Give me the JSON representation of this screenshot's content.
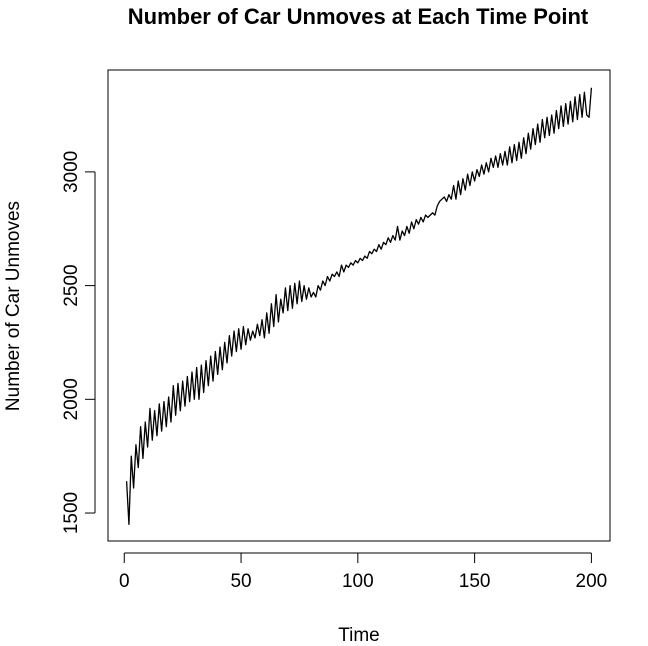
{
  "chart_data": {
    "type": "line",
    "title": "Number of Car Unmoves at Each Time Point",
    "x_label": "Time",
    "y_label": "Number of Car Unmoves",
    "x": [
      1,
      2,
      3,
      4,
      5,
      6,
      7,
      8,
      9,
      10,
      11,
      12,
      13,
      14,
      15,
      16,
      17,
      18,
      19,
      20,
      21,
      22,
      23,
      24,
      25,
      26,
      27,
      28,
      29,
      30,
      31,
      32,
      33,
      34,
      35,
      36,
      37,
      38,
      39,
      40,
      41,
      42,
      43,
      44,
      45,
      46,
      47,
      48,
      49,
      50,
      51,
      52,
      53,
      54,
      55,
      56,
      57,
      58,
      59,
      60,
      61,
      62,
      63,
      64,
      65,
      66,
      67,
      68,
      69,
      70,
      71,
      72,
      73,
      74,
      75,
      76,
      77,
      78,
      79,
      80,
      81,
      82,
      83,
      84,
      85,
      86,
      87,
      88,
      89,
      90,
      91,
      92,
      93,
      94,
      95,
      96,
      97,
      98,
      99,
      100,
      101,
      102,
      103,
      104,
      105,
      106,
      107,
      108,
      109,
      110,
      111,
      112,
      113,
      114,
      115,
      116,
      117,
      118,
      119,
      120,
      121,
      122,
      123,
      124,
      125,
      126,
      127,
      128,
      129,
      130,
      131,
      132,
      133,
      134,
      135,
      136,
      137,
      138,
      139,
      140,
      141,
      142,
      143,
      144,
      145,
      146,
      147,
      148,
      149,
      150,
      151,
      152,
      153,
      154,
      155,
      156,
      157,
      158,
      159,
      160,
      161,
      162,
      163,
      164,
      165,
      166,
      167,
      168,
      169,
      170,
      171,
      172,
      173,
      174,
      175,
      176,
      177,
      178,
      179,
      180,
      181,
      182,
      183,
      184,
      185,
      186,
      187,
      188,
      189,
      190,
      191,
      192,
      193,
      194,
      195,
      196,
      197,
      198,
      199,
      200
    ],
    "series": [
      {
        "color": "#000000",
        "values": [
          1640,
          1450,
          1750,
          1610,
          1800,
          1700,
          1880,
          1740,
          1900,
          1790,
          1960,
          1820,
          1950,
          1840,
          1980,
          1860,
          1990,
          1880,
          2010,
          1900,
          2060,
          1930,
          2070,
          1950,
          2080,
          1970,
          2100,
          1990,
          2120,
          2000,
          2140,
          2000,
          2150,
          2030,
          2170,
          2060,
          2190,
          2080,
          2210,
          2110,
          2230,
          2130,
          2250,
          2160,
          2280,
          2190,
          2300,
          2210,
          2310,
          2220,
          2320,
          2240,
          2310,
          2260,
          2300,
          2270,
          2330,
          2280,
          2350,
          2270,
          2380,
          2290,
          2420,
          2320,
          2460,
          2340,
          2440,
          2380,
          2490,
          2390,
          2500,
          2400,
          2510,
          2420,
          2520,
          2430,
          2500,
          2440,
          2490,
          2450,
          2470,
          2450,
          2500,
          2480,
          2520,
          2500,
          2540,
          2520,
          2550,
          2540,
          2560,
          2540,
          2590,
          2560,
          2590,
          2580,
          2600,
          2590,
          2610,
          2600,
          2620,
          2610,
          2630,
          2620,
          2650,
          2640,
          2660,
          2650,
          2680,
          2660,
          2690,
          2680,
          2710,
          2690,
          2720,
          2700,
          2760,
          2700,
          2740,
          2720,
          2760,
          2730,
          2780,
          2750,
          2790,
          2770,
          2800,
          2780,
          2810,
          2800,
          2810,
          2820,
          2810,
          2850,
          2870,
          2880,
          2890,
          2870,
          2900,
          2880,
          2940,
          2880,
          2960,
          2900,
          2970,
          2920,
          2990,
          2940,
          3000,
          2960,
          3010,
          2980,
          3030,
          2990,
          3040,
          3000,
          3060,
          3020,
          3070,
          3020,
          3080,
          3030,
          3090,
          3030,
          3110,
          3040,
          3120,
          3050,
          3130,
          3060,
          3150,
          3080,
          3170,
          3100,
          3190,
          3120,
          3210,
          3130,
          3230,
          3150,
          3240,
          3160,
          3250,
          3170,
          3270,
          3190,
          3290,
          3200,
          3300,
          3210,
          3310,
          3220,
          3330,
          3230,
          3340,
          3240,
          3350,
          3250,
          3240,
          3370
        ]
      }
    ],
    "xlim": [
      -6.96,
      207.96
    ],
    "ylim": [
      1377,
      3448
    ],
    "xticks": [
      0,
      50,
      100,
      150,
      200
    ],
    "yticks": [
      1500,
      2000,
      2500,
      3000
    ]
  }
}
